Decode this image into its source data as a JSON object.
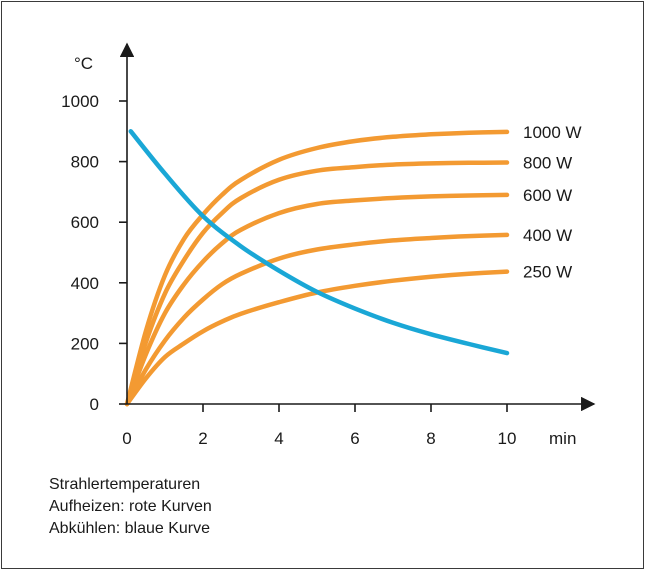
{
  "chart_data": {
    "type": "line",
    "title": "",
    "ylabel": "°C",
    "xlabel": "min",
    "xlim": [
      0,
      10
    ],
    "ylim": [
      0,
      1000
    ],
    "x_ticks": [
      0,
      2,
      4,
      6,
      8,
      10
    ],
    "y_ticks": [
      0,
      200,
      400,
      600,
      800,
      1000
    ],
    "grid": false,
    "colors": {
      "heating": "#f39a32",
      "cooling": "#1aa7d6",
      "axis": "#1a1a1a"
    },
    "series": [
      {
        "name": "1000 W",
        "kind": "heating",
        "x": [
          0,
          0.5,
          1,
          1.5,
          2,
          2.5,
          3,
          4,
          5,
          6,
          7,
          8,
          9,
          10
        ],
        "values": [
          0,
          242,
          425,
          545,
          625,
          690,
          740,
          806,
          845,
          868,
          882,
          890,
          895,
          898
        ]
      },
      {
        "name": "800 W",
        "kind": "heating",
        "x": [
          0,
          0.5,
          1,
          1.5,
          2,
          2.5,
          3,
          4,
          5,
          6,
          7,
          8,
          9,
          10
        ],
        "values": [
          0,
          205,
          365,
          475,
          565,
          630,
          680,
          740,
          770,
          782,
          790,
          794,
          796,
          797
        ]
      },
      {
        "name": "600 W",
        "kind": "heating",
        "x": [
          0,
          0.5,
          1,
          1.5,
          2,
          2.5,
          3,
          4,
          5,
          6,
          7,
          8,
          9,
          10
        ],
        "values": [
          0,
          165,
          300,
          395,
          470,
          530,
          575,
          630,
          660,
          672,
          680,
          685,
          688,
          690
        ]
      },
      {
        "name": "400 W",
        "kind": "heating",
        "x": [
          0,
          0.5,
          1,
          1.5,
          2,
          2.5,
          3,
          4,
          5,
          6,
          7,
          8,
          9,
          10
        ],
        "values": [
          0,
          115,
          210,
          285,
          345,
          395,
          430,
          480,
          510,
          527,
          540,
          548,
          554,
          558
        ]
      },
      {
        "name": "250 W",
        "kind": "heating",
        "x": [
          0,
          0.5,
          1,
          1.5,
          2,
          2.5,
          3,
          4,
          5,
          6,
          7,
          8,
          9,
          10
        ],
        "values": [
          0,
          85,
          155,
          200,
          240,
          272,
          298,
          336,
          368,
          390,
          407,
          420,
          430,
          437
        ]
      },
      {
        "name": "",
        "kind": "cooling",
        "x": [
          0.1,
          1,
          2,
          3,
          4,
          5,
          6,
          7,
          8,
          9,
          10
        ],
        "values": [
          900,
          760,
          620,
          520,
          440,
          370,
          315,
          268,
          230,
          198,
          168
        ]
      }
    ]
  },
  "caption": {
    "line1": "Strahlertemperaturen",
    "line2": "Aufheizen: rote Kurven",
    "line3": "Abkühlen: blaue Kurve"
  }
}
